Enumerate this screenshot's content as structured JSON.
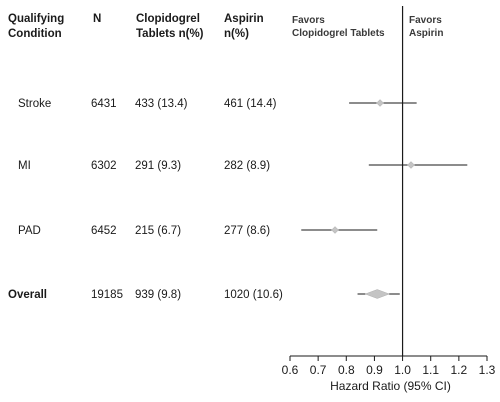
{
  "headers": {
    "condition": [
      "Qualifying",
      "Condition"
    ],
    "n": "N",
    "clopidogrel": [
      "Clopidogrel",
      "Tablets n(%)"
    ],
    "aspirin": [
      "Aspirin",
      "n(%)"
    ]
  },
  "favors": {
    "left": [
      "Favors",
      "Clopidogrel Tablets"
    ],
    "right": [
      "Favors",
      "Aspirin"
    ]
  },
  "rows": [
    {
      "condition": "Stroke",
      "n": "6431",
      "clopidogrel": "433 (13.4)",
      "aspirin": "461 (14.4)"
    },
    {
      "condition": "MI",
      "n": "6302",
      "clopidogrel": "291 (9.3)",
      "aspirin": "282 (8.9)"
    },
    {
      "condition": "PAD",
      "n": "6452",
      "clopidogrel": "215 (6.7)",
      "aspirin": "277 (8.6)"
    },
    {
      "condition": "Overall",
      "n": "19185",
      "clopidogrel": "939 (9.8)",
      "aspirin": "1020 (10.6)"
    }
  ],
  "chart_data": {
    "type": "forest",
    "xlabel": "Hazard Ratio (95% CI)",
    "xlim": [
      0.6,
      1.3
    ],
    "xticks": [
      "0.6",
      "0.7",
      "0.8",
      "0.9",
      "1.0",
      "1.1",
      "1.2",
      "1.3"
    ],
    "reference_line": 1.0,
    "categories": [
      "Stroke",
      "MI",
      "PAD",
      "Overall"
    ],
    "estimates": [
      {
        "label": "Stroke",
        "hr": 0.92,
        "lo": 0.81,
        "hi": 1.05
      },
      {
        "label": "MI",
        "hr": 1.03,
        "lo": 0.88,
        "hi": 1.23
      },
      {
        "label": "PAD",
        "hr": 0.76,
        "lo": 0.64,
        "hi": 0.91
      },
      {
        "label": "Overall",
        "hr": 0.91,
        "lo": 0.84,
        "hi": 0.99
      }
    ],
    "colors": {
      "axis": "#1a1a1a",
      "marker": "#c4c4c4"
    }
  }
}
